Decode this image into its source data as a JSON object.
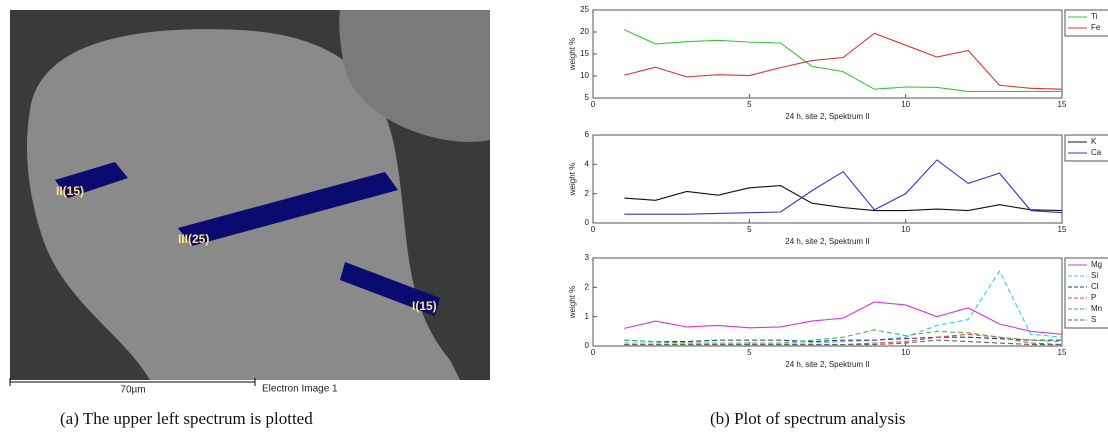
{
  "image": {
    "markers": [
      "II(15)",
      "III(25)",
      "I(15)"
    ],
    "scale": "70µm",
    "label": "Electron Image 1"
  },
  "captions": [
    "(a) The upper left spectrum is plotted",
    "(b) Plot of spectrum analysis"
  ],
  "chart_data": [
    {
      "type": "line",
      "x_label": "24 h, site 2, Spektrum II",
      "y_label": "weight %",
      "x": [
        1,
        2,
        3,
        4,
        5,
        6,
        7,
        8,
        9,
        10,
        11,
        12,
        13,
        14,
        15
      ],
      "xlim": [
        0,
        15
      ],
      "xticks": [
        0,
        5,
        10,
        15
      ],
      "ylim": [
        5,
        25
      ],
      "yticks": [
        5,
        10,
        15,
        20,
        25
      ],
      "grid": false,
      "legend": "right",
      "series": [
        {
          "name": "Ti",
          "color": "#33cc33",
          "dashed": false,
          "values": [
            20.5,
            17.3,
            17.8,
            18.1,
            17.7,
            17.5,
            12.2,
            11.0,
            7.0,
            7.5,
            7.4,
            6.5,
            6.5,
            6.5,
            6.5
          ]
        },
        {
          "name": "Fe",
          "color": "#dd3333",
          "dashed": false,
          "values": [
            10.2,
            12.0,
            9.8,
            10.3,
            10.1,
            11.9,
            13.5,
            14.2,
            19.7,
            17.0,
            14.3,
            15.8,
            7.9,
            7.2,
            7.0
          ]
        }
      ]
    },
    {
      "type": "line",
      "x_label": "24 h, site 2, Spektrum II",
      "y_label": "weight %",
      "x": [
        1,
        2,
        3,
        4,
        5,
        6,
        7,
        8,
        9,
        10,
        11,
        12,
        13,
        14,
        15
      ],
      "xlim": [
        0,
        15
      ],
      "xticks": [
        0,
        5,
        10,
        15
      ],
      "ylim": [
        0,
        6
      ],
      "yticks": [
        0,
        2,
        4,
        6
      ],
      "grid": false,
      "legend": "right",
      "series": [
        {
          "name": "K",
          "color": "#111111",
          "dashed": false,
          "values": [
            1.7,
            1.55,
            2.15,
            1.9,
            2.4,
            2.55,
            1.35,
            1.05,
            0.85,
            0.85,
            0.95,
            0.85,
            1.25,
            0.9,
            0.85
          ]
        },
        {
          "name": "Ca",
          "color": "#3333cc",
          "dashed": false,
          "values": [
            0.6,
            0.6,
            0.6,
            0.65,
            0.7,
            0.75,
            2.2,
            3.5,
            0.9,
            2.0,
            4.3,
            2.7,
            3.4,
            0.85,
            0.7
          ]
        }
      ]
    },
    {
      "type": "line",
      "x_label": "24 h, site 2, Spektrum II",
      "y_label": "weight %",
      "x": [
        1,
        2,
        3,
        4,
        5,
        6,
        7,
        8,
        9,
        10,
        11,
        12,
        13,
        14,
        15
      ],
      "xlim": [
        0,
        15
      ],
      "xticks": [
        0,
        5,
        10,
        15
      ],
      "ylim": [
        0,
        3
      ],
      "yticks": [
        0,
        1,
        2,
        3
      ],
      "grid": false,
      "legend": "right",
      "series": [
        {
          "name": "Mg",
          "color": "#dd33dd",
          "dashed": false,
          "values": [
            0.6,
            0.85,
            0.65,
            0.7,
            0.62,
            0.65,
            0.85,
            0.95,
            1.5,
            1.4,
            1.0,
            1.3,
            0.75,
            0.5,
            0.4
          ]
        },
        {
          "name": "Si",
          "color": "#33ccee",
          "dashed": true,
          "values": [
            0.1,
            0.1,
            0.1,
            0.1,
            0.1,
            0.1,
            0.1,
            0.15,
            0.2,
            0.3,
            0.7,
            0.9,
            2.55,
            0.4,
            0.3
          ]
        },
        {
          "name": "Cl",
          "color": "#223388",
          "dashed": true,
          "values": [
            0.2,
            0.15,
            0.15,
            0.2,
            0.2,
            0.2,
            0.15,
            0.2,
            0.2,
            0.25,
            0.3,
            0.3,
            0.25,
            0.2,
            0.2
          ]
        },
        {
          "name": "P",
          "color": "#ee4444",
          "dashed": true,
          "values": [
            0.05,
            0.05,
            0.05,
            0.05,
            0.05,
            0.05,
            0.05,
            0.05,
            0.1,
            0.15,
            0.3,
            0.4,
            0.3,
            0.1,
            0.05
          ]
        },
        {
          "name": "Mn",
          "color": "#44bb44",
          "dashed": true,
          "values": [
            0.2,
            0.15,
            0.1,
            0.1,
            0.1,
            0.1,
            0.2,
            0.3,
            0.55,
            0.35,
            0.5,
            0.45,
            0.3,
            0.2,
            0.15
          ]
        },
        {
          "name": "S",
          "color": "#666666",
          "dashed": true,
          "values": [
            0.05,
            0.05,
            0.05,
            0.05,
            0.05,
            0.05,
            0.05,
            0.05,
            0.05,
            0.1,
            0.2,
            0.15,
            0.1,
            0.05,
            0.05
          ]
        }
      ]
    }
  ]
}
